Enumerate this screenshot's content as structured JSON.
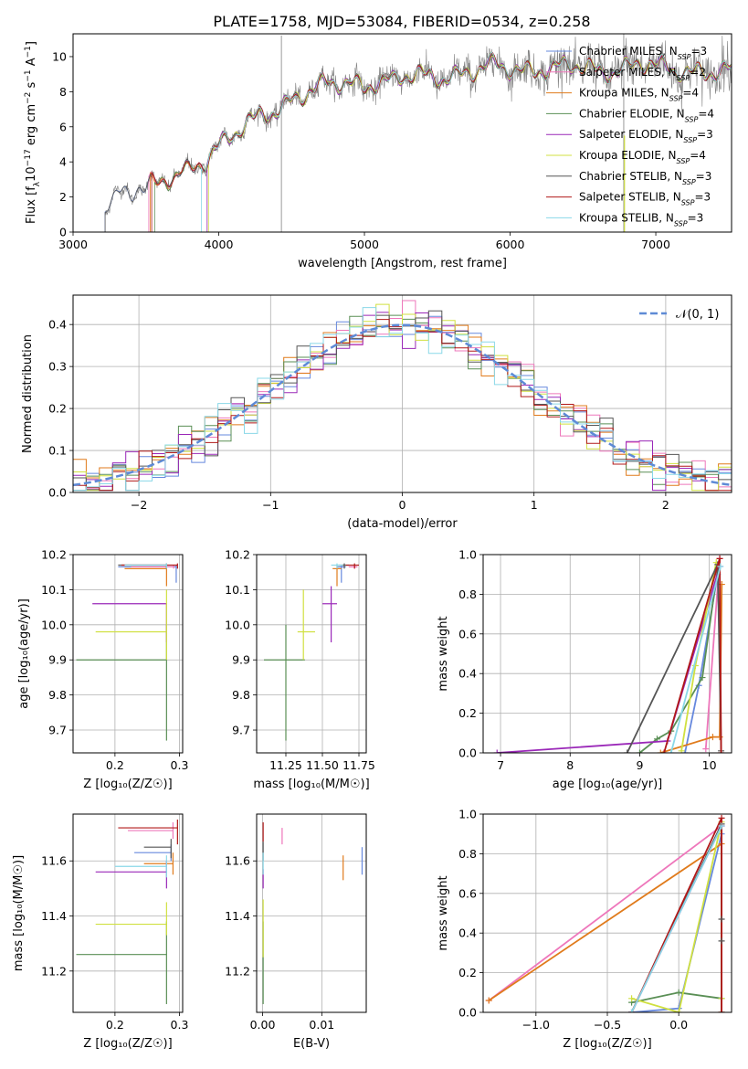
{
  "figure": {
    "title": "PLATE=1758, MJD=53084, FIBERID=0534, z=0.258"
  },
  "colors": {
    "Chabrier MILES": "#6688dd",
    "Salpeter MILES": "#ee77bb",
    "Kroupa MILES": "#e07b1c",
    "Chabrier ELODIE": "#5a8f55",
    "Salpeter ELODIE": "#9a28b8",
    "Kroupa ELODIE": "#d0e040",
    "Chabrier STELIB": "#555555",
    "Salpeter STELIB": "#b01818",
    "Kroupa STELIB": "#8ad8e8",
    "data": "#808080",
    "normal_curve": "#5e8ad6"
  },
  "chart_data": [
    {
      "id": "spectrum",
      "type": "line",
      "title": "PLATE=1758, MJD=53084, FIBERID=0534, z=0.258",
      "xlabel": "wavelength [Angstrom, rest frame]",
      "ylabel_parts": [
        "Flux [f",
        "λ",
        "10",
        "−17",
        " erg cm",
        "−2",
        " s",
        "−1",
        " A",
        "−1",
        "]"
      ],
      "xlim": [
        3000,
        7520
      ],
      "ylim": [
        0,
        11.3
      ],
      "xticks": [
        3000,
        4000,
        5000,
        6000,
        7000
      ],
      "yticks": [
        0,
        2,
        4,
        6,
        8,
        10
      ],
      "grid": false,
      "legend_position": "right",
      "legend": [
        {
          "label": "Chabrier MILES, N",
          "sub": "SSP",
          "tail": "=3"
        },
        {
          "label": "Salpeter MILES, N",
          "sub": "SSP",
          "tail": "=2"
        },
        {
          "label": "Kroupa MILES, N",
          "sub": "SSP",
          "tail": "=4"
        },
        {
          "label": "Chabrier ELODIE, N",
          "sub": "SSP",
          "tail": "=4"
        },
        {
          "label": "Salpeter ELODIE, N",
          "sub": "SSP",
          "tail": "=3"
        },
        {
          "label": "Kroupa ELODIE, N",
          "sub": "SSP",
          "tail": "=4"
        },
        {
          "label": "Chabrier STELIB, N",
          "sub": "SSP",
          "tail": "=3"
        },
        {
          "label": "Salpeter STELIB, N",
          "sub": "SSP",
          "tail": "=3"
        },
        {
          "label": "Kroupa STELIB, N",
          "sub": "SSP",
          "tail": "=3"
        }
      ],
      "continuum": {
        "x": [
          3220,
          3300,
          3400,
          3500,
          3600,
          3700,
          3800,
          3900,
          4000,
          4100,
          4200,
          4300,
          4400,
          4500,
          4600,
          4700,
          4800,
          4900,
          5000,
          5100,
          5200,
          5300,
          5400,
          5500,
          5600,
          5700,
          5800,
          5900,
          6000,
          6100,
          6200,
          6300,
          6400,
          6500,
          6600,
          6700,
          6800,
          6900,
          7000,
          7100,
          7200,
          7300,
          7400,
          7520
        ],
        "y": [
          1.5,
          2.3,
          2.4,
          2.5,
          2.6,
          3.2,
          3.7,
          4.2,
          4.9,
          5.4,
          6.1,
          6.7,
          7.1,
          7.6,
          7.9,
          8.2,
          8.4,
          8.6,
          8.4,
          8.7,
          8.5,
          8.8,
          8.9,
          8.9,
          9.0,
          9.1,
          9.2,
          9.4,
          9.3,
          9.3,
          9.4,
          9.3,
          9.4,
          9.3,
          9.2,
          9.3,
          9.5,
          9.6,
          9.3,
          9.2,
          9.2,
          9.3,
          9.2,
          9.1
        ]
      },
      "data_noise": 0.55,
      "spikes": [
        {
          "x": 4430,
          "y": 11.2
        },
        {
          "x": 6780,
          "y": 11.3
        }
      ],
      "model_starts": [
        3220,
        3520,
        3530,
        3560,
        3920,
        3930,
        3220,
        3540,
        3880
      ]
    },
    {
      "id": "residuals",
      "type": "histogram",
      "xlabel": "(data-model)/error",
      "ylabel": "Normed distribution",
      "xlim": [
        -2.5,
        2.5
      ],
      "ylim": [
        0,
        0.47
      ],
      "xticks": [
        -2,
        -1,
        0,
        1,
        2
      ],
      "yticks": [
        0.0,
        0.1,
        0.2,
        0.3,
        0.4
      ],
      "grid": true,
      "legend_position": "top-right",
      "legend": [
        "𝒩(0, 1)"
      ],
      "bin_width": 0.1,
      "normal": {
        "mean": 0,
        "sigma": 1
      }
    },
    {
      "id": "age_vs_Z",
      "type": "scatter",
      "xlabel": "Z [log₁₀(Z/Z☉)]",
      "ylabel": "age  [log₁₀(age/yr)]",
      "xlim": [
        0.135,
        0.305
      ],
      "ylim": [
        9.635,
        10.2
      ],
      "xticks": [
        0.2,
        0.3
      ],
      "yticks": [
        9.7,
        9.8,
        9.9,
        10.0,
        10.1,
        10.2
      ],
      "grid": true,
      "points": [
        {
          "model": "Chabrier MILES",
          "x": 0.295,
          "y": 10.165,
          "xlo": 0.205,
          "ylo": 10.12,
          "yhi": 10.17
        },
        {
          "model": "Salpeter MILES",
          "x": 0.291,
          "y": 10.165,
          "xlo": 0.225,
          "ylo": 10.16,
          "yhi": 10.17
        },
        {
          "model": "Kroupa MILES",
          "x": 0.28,
          "y": 10.16,
          "xlo": 0.215,
          "ylo": 10.11,
          "yhi": 10.17
        },
        {
          "model": "Chabrier ELODIE",
          "x": 0.28,
          "y": 9.9,
          "xlo": 0.14,
          "ylo": 9.67,
          "yhi": 10.0
        },
        {
          "model": "Salpeter ELODIE",
          "x": 0.28,
          "y": 10.06,
          "xlo": 0.165,
          "ylo": 9.95,
          "yhi": 10.06
        },
        {
          "model": "Kroupa ELODIE",
          "x": 0.28,
          "y": 9.98,
          "xlo": 0.17,
          "ylo": 9.9,
          "yhi": 10.1
        },
        {
          "model": "Chabrier STELIB",
          "x": 0.28,
          "y": 10.17,
          "xlo": 0.205,
          "ylo": 10.16,
          "yhi": 10.175
        },
        {
          "model": "Salpeter STELIB",
          "x": 0.297,
          "y": 10.17,
          "xlo": 0.21,
          "ylo": 10.16,
          "yhi": 10.175
        },
        {
          "model": "Kroupa STELIB",
          "x": 0.28,
          "y": 10.17,
          "xlo": 0.215,
          "ylo": 10.16,
          "yhi": 10.175
        }
      ]
    },
    {
      "id": "age_vs_mass",
      "type": "scatter",
      "xlabel": "mass [log₁₀(M/M☉)]",
      "xlim": [
        11.05,
        11.8
      ],
      "ylim": [
        9.635,
        10.2
      ],
      "xticks": [
        11.25,
        11.5,
        11.75
      ],
      "xtick_labels": [
        "11.25",
        "11.50",
        "11.75"
      ],
      "yticks": [
        9.7,
        9.8,
        9.9,
        10.0,
        10.1,
        10.2
      ],
      "grid": true,
      "points": [
        {
          "model": "Chabrier MILES",
          "x": 11.63,
          "y": 10.165,
          "xlo": 11.6,
          "xhi": 11.66,
          "ylo": 10.12,
          "yhi": 10.17
        },
        {
          "model": "Salpeter MILES",
          "x": 11.72,
          "y": 10.165,
          "xlo": 11.68,
          "xhi": 11.74,
          "ylo": 10.16,
          "yhi": 10.17
        },
        {
          "model": "Kroupa MILES",
          "x": 11.6,
          "y": 10.16,
          "xlo": 11.57,
          "xhi": 11.63,
          "ylo": 10.11,
          "yhi": 10.17
        },
        {
          "model": "Chabrier ELODIE",
          "x": 11.25,
          "y": 9.9,
          "xlo": 11.1,
          "xhi": 11.38,
          "ylo": 9.67,
          "yhi": 10.0
        },
        {
          "model": "Salpeter ELODIE",
          "x": 11.56,
          "y": 10.06,
          "xlo": 11.5,
          "xhi": 11.6,
          "ylo": 9.95,
          "yhi": 10.11
        },
        {
          "model": "Kroupa ELODIE",
          "x": 11.37,
          "y": 9.98,
          "xlo": 11.33,
          "xhi": 11.45,
          "ylo": 9.9,
          "yhi": 10.1
        },
        {
          "model": "Chabrier STELIB",
          "x": 11.65,
          "y": 10.17,
          "xlo": 11.61,
          "xhi": 11.68,
          "ylo": 10.16,
          "yhi": 10.175
        },
        {
          "model": "Salpeter STELIB",
          "x": 11.72,
          "y": 10.17,
          "xlo": 11.66,
          "xhi": 11.75,
          "ylo": 10.16,
          "yhi": 10.175
        },
        {
          "model": "Kroupa STELIB",
          "x": 11.6,
          "y": 10.17,
          "xlo": 11.56,
          "xhi": 11.64,
          "ylo": 10.16,
          "yhi": 10.175
        }
      ]
    },
    {
      "id": "massweight_vs_age",
      "type": "line",
      "xlabel": "age  [log₁₀(age/yr)]",
      "ylabel": "mass weight",
      "xlim": [
        6.75,
        10.32
      ],
      "ylim": [
        0,
        1
      ],
      "xticks": [
        7,
        8,
        9,
        10
      ],
      "yticks": [
        0.0,
        0.2,
        0.4,
        0.6,
        0.8,
        1.0
      ],
      "grid": true,
      "series": [
        {
          "model": "Chabrier MILES",
          "x": [
            9.65,
            9.85,
            10.12
          ],
          "y": [
            0.0,
            0.34,
            0.9
          ]
        },
        {
          "model": "Salpeter MILES",
          "x": [
            9.95,
            10.15
          ],
          "y": [
            0.02,
            0.98
          ]
        },
        {
          "model": "Kroupa MILES",
          "x": [
            9.3,
            10.05,
            10.15,
            10.18
          ],
          "y": [
            0.0,
            0.08,
            0.08,
            0.85
          ]
        },
        {
          "model": "Chabrier ELODIE",
          "x": [
            9.0,
            9.25,
            9.45,
            9.9,
            10.12
          ],
          "y": [
            0.0,
            0.07,
            0.11,
            0.38,
            0.93
          ]
        },
        {
          "model": "Salpeter ELODIE",
          "x": [
            6.95,
            9.4,
            10.15
          ],
          "y": [
            0.0,
            0.06,
            0.94
          ]
        },
        {
          "model": "Kroupa ELODIE",
          "x": [
            9.6,
            9.8,
            10.1
          ],
          "y": [
            0.01,
            0.44,
            0.96
          ]
        },
        {
          "model": "Chabrier STELIB",
          "x": [
            8.82,
            10.12,
            10.17
          ],
          "y": [
            0.0,
            0.95,
            0.01
          ]
        },
        {
          "model": "Salpeter STELIB",
          "x": [
            9.35,
            10.15,
            10.17
          ],
          "y": [
            0.0,
            0.98,
            0.0
          ]
        },
        {
          "model": "Kroupa STELIB",
          "x": [
            9.45,
            10.16
          ],
          "y": [
            0.0,
            0.94
          ]
        }
      ]
    },
    {
      "id": "mass_vs_Z",
      "type": "scatter",
      "xlabel": "Z [log₁₀(Z/Z☉)]",
      "ylabel": "mass [log₁₀(M/M☉)]",
      "xlim": [
        0.135,
        0.305
      ],
      "ylim": [
        11.05,
        11.77
      ],
      "xticks": [
        0.2,
        0.3
      ],
      "yticks": [
        11.2,
        11.4,
        11.6
      ],
      "grid": true,
      "points": [
        {
          "model": "Chabrier MILES",
          "x": 0.287,
          "y": 11.63,
          "xlo": 0.23,
          "ylo": 11.6,
          "yhi": 11.66
        },
        {
          "model": "Salpeter MILES",
          "x": 0.29,
          "y": 11.71,
          "xlo": 0.22,
          "ylo": 11.68,
          "yhi": 11.74
        },
        {
          "model": "Kroupa MILES",
          "x": 0.29,
          "y": 11.59,
          "xlo": 0.245,
          "ylo": 11.55,
          "yhi": 11.63
        },
        {
          "model": "Chabrier ELODIE",
          "x": 0.28,
          "y": 11.26,
          "xlo": 0.14,
          "ylo": 11.08,
          "yhi": 11.38
        },
        {
          "model": "Salpeter ELODIE",
          "x": 0.28,
          "y": 11.56,
          "xlo": 0.17,
          "ylo": 11.5,
          "yhi": 11.6
        },
        {
          "model": "Kroupa ELODIE",
          "x": 0.28,
          "y": 11.37,
          "xlo": 0.17,
          "ylo": 11.33,
          "yhi": 11.45
        },
        {
          "model": "Chabrier STELIB",
          "x": 0.287,
          "y": 11.65,
          "xlo": 0.245,
          "ylo": 11.61,
          "yhi": 11.68
        },
        {
          "model": "Salpeter STELIB",
          "x": 0.297,
          "y": 11.72,
          "xlo": 0.205,
          "ylo": 11.66,
          "yhi": 11.75
        },
        {
          "model": "Kroupa STELIB",
          "x": 0.28,
          "y": 11.58,
          "xlo": 0.2,
          "ylo": 11.54,
          "yhi": 11.62
        }
      ]
    },
    {
      "id": "mass_vs_EBV",
      "type": "scatter",
      "xlabel": "E(B-V)",
      "xlim": [
        -0.001,
        0.0175
      ],
      "ylim": [
        11.05,
        11.77
      ],
      "xticks": [
        0.0,
        0.01
      ],
      "xtick_labels": [
        "0.00",
        "0.01"
      ],
      "yticks": [
        11.2,
        11.4,
        11.6
      ],
      "grid": true,
      "points": [
        {
          "model": "Chabrier MILES",
          "x": 0.0168,
          "y": 11.6,
          "ylo": 11.55,
          "yhi": 11.65
        },
        {
          "model": "Salpeter MILES",
          "x": 0.0033,
          "y": 11.69,
          "ylo": 11.66,
          "yhi": 11.72
        },
        {
          "model": "Kroupa MILES",
          "x": 0.0136,
          "y": 11.58,
          "ylo": 11.53,
          "yhi": 11.62
        },
        {
          "model": "Chabrier ELODIE",
          "x": 0.0001,
          "y": 11.22,
          "ylo": 11.08,
          "yhi": 11.38
        },
        {
          "model": "Salpeter ELODIE",
          "x": 0.0001,
          "y": 11.53,
          "ylo": 11.5,
          "yhi": 11.57
        },
        {
          "model": "Kroupa ELODIE",
          "x": 0.0001,
          "y": 11.36,
          "ylo": 11.25,
          "yhi": 11.46
        },
        {
          "model": "Chabrier STELIB",
          "x": 0.0001,
          "y": 11.63,
          "ylo": 11.6,
          "yhi": 11.67
        },
        {
          "model": "Salpeter STELIB",
          "x": 0.0001,
          "y": 11.7,
          "ylo": 11.67,
          "yhi": 11.74
        },
        {
          "model": "Kroupa STELIB",
          "x": 0.0001,
          "y": 11.59,
          "ylo": 11.55,
          "yhi": 11.63
        }
      ]
    },
    {
      "id": "massweight_vs_Z",
      "type": "line",
      "xlabel": "Z [log₁₀(Z/Z☉)]",
      "ylabel": "mass weight",
      "xlim": [
        -1.37,
        0.37
      ],
      "ylim": [
        0,
        1
      ],
      "xticks": [
        -1.0,
        -0.5,
        0.0
      ],
      "xtick_labels": [
        "−1.0",
        "−0.5",
        "0.0"
      ],
      "yticks": [
        0.0,
        0.2,
        0.4,
        0.6,
        0.8,
        1.0
      ],
      "grid": true,
      "series": [
        {
          "model": "Chabrier MILES",
          "x": [
            -0.33,
            0.0,
            0.3
          ],
          "y": [
            0.0,
            0.02,
            0.9
          ]
        },
        {
          "model": "Salpeter MILES",
          "x": [
            -1.33,
            0.3
          ],
          "y": [
            0.06,
            0.94
          ]
        },
        {
          "model": "Kroupa MILES",
          "x": [
            -1.33,
            0.3,
            0.3
          ],
          "y": [
            0.06,
            0.85,
            0.0
          ]
        },
        {
          "model": "Chabrier ELODIE",
          "x": [
            -0.33,
            0.0,
            0.3
          ],
          "y": [
            0.05,
            0.1,
            0.07
          ]
        },
        {
          "model": "Salpeter ELODIE",
          "x": [
            -0.33,
            0.3
          ],
          "y": [
            0.0,
            0.94
          ]
        },
        {
          "model": "Kroupa ELODIE",
          "x": [
            -0.33,
            0.0,
            0.3,
            0.3
          ],
          "y": [
            0.07,
            0.0,
            0.96,
            0.07
          ]
        },
        {
          "model": "Chabrier STELIB",
          "x": [
            -0.33,
            0.3,
            0.3
          ],
          "y": [
            0.0,
            0.95,
            0.0
          ]
        },
        {
          "model": "Salpeter STELIB",
          "x": [
            -0.33,
            0.3,
            0.3
          ],
          "y": [
            0.0,
            0.98,
            0.0
          ]
        },
        {
          "model": "Kroupa STELIB",
          "x": [
            -0.33,
            0.3
          ],
          "y": [
            0.0,
            0.94
          ]
        }
      ],
      "extra_markers": [
        {
          "model": "Chabrier STELIB",
          "x": 0.3,
          "y": 0.47
        },
        {
          "model": "Chabrier STELIB",
          "x": 0.3,
          "y": 0.36
        }
      ]
    }
  ]
}
